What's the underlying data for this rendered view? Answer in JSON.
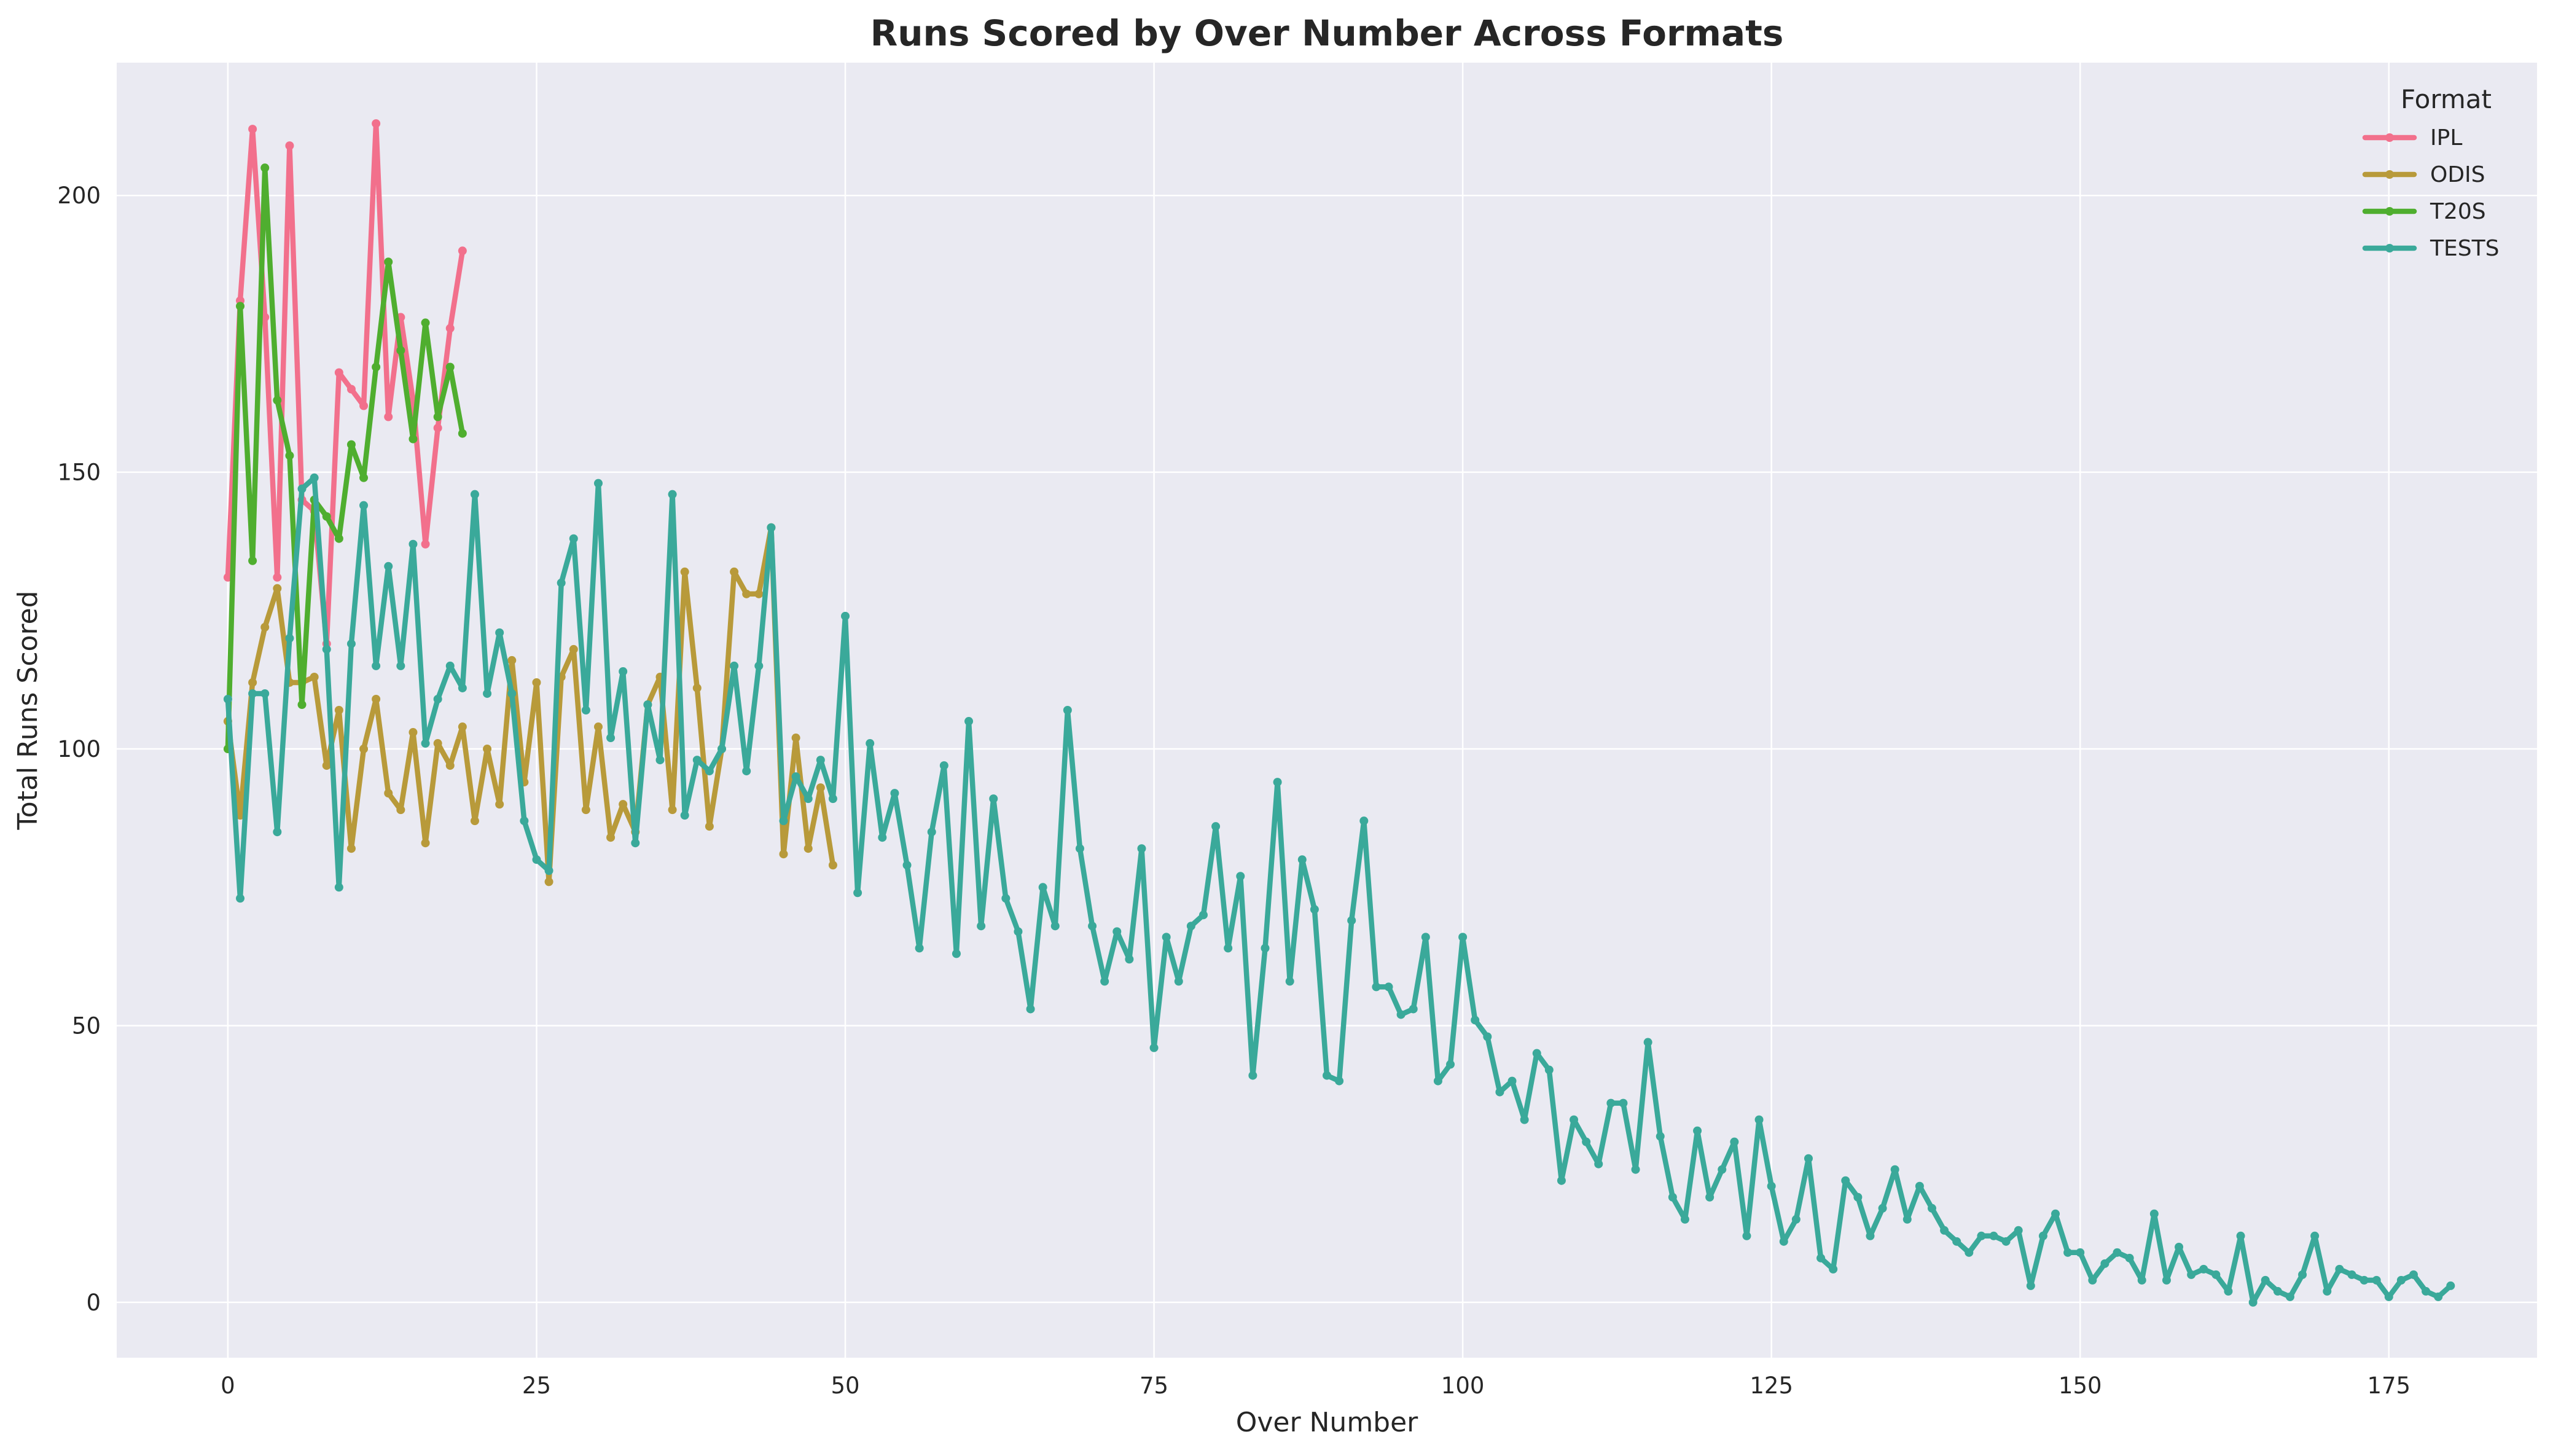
{
  "chart_data": {
    "type": "line",
    "title": "Runs Scored by Over Number Across Formats",
    "xlabel": "Over Number",
    "ylabel": "Total Runs Scored",
    "xlim": [
      -9,
      187
    ],
    "ylim": [
      -10,
      224
    ],
    "xticks": [
      0,
      25,
      50,
      75,
      100,
      125,
      150,
      175
    ],
    "yticks": [
      0,
      50,
      100,
      150,
      200
    ],
    "grid": true,
    "background": "#eaeaf2",
    "legend": {
      "title": "Format",
      "placement": "top-right"
    },
    "series": [
      {
        "name": "IPL",
        "color": "#f2708c",
        "x": [
          0,
          1,
          2,
          3,
          4,
          5,
          6,
          7,
          8,
          9,
          10,
          11,
          12,
          13,
          14,
          15,
          16,
          17,
          18,
          19
        ],
        "values": [
          131,
          181,
          212,
          178,
          131,
          209,
          145,
          143,
          119,
          168,
          165,
          162,
          213,
          160,
          178,
          163,
          137,
          158,
          176,
          190
        ]
      },
      {
        "name": "ODIS",
        "color": "#b89a3a",
        "x": [
          0,
          1,
          2,
          3,
          4,
          5,
          6,
          7,
          8,
          9,
          10,
          11,
          12,
          13,
          14,
          15,
          16,
          17,
          18,
          19,
          20,
          21,
          22,
          23,
          24,
          25,
          26,
          27,
          28,
          29,
          30,
          31,
          32,
          33,
          34,
          35,
          36,
          37,
          38,
          39,
          40,
          41,
          42,
          43,
          44,
          45,
          46,
          47,
          48,
          49
        ],
        "values": [
          105,
          88,
          112,
          122,
          129,
          112,
          112,
          113,
          97,
          107,
          82,
          100,
          109,
          92,
          89,
          103,
          83,
          101,
          97,
          104,
          87,
          100,
          90,
          116,
          94,
          112,
          76,
          113,
          118,
          89,
          104,
          84,
          90,
          85,
          108,
          113,
          89,
          132,
          111,
          86,
          100,
          132,
          128,
          128,
          140,
          81,
          102,
          82,
          93,
          79
        ]
      },
      {
        "name": "T20S",
        "color": "#4fae2f",
        "x": [
          0,
          1,
          2,
          3,
          4,
          5,
          6,
          7,
          8,
          9,
          10,
          11,
          12,
          13,
          14,
          15,
          16,
          17,
          18,
          19
        ],
        "values": [
          100,
          180,
          134,
          205,
          163,
          153,
          108,
          145,
          142,
          138,
          155,
          149,
          169,
          188,
          172,
          156,
          177,
          160,
          169,
          157
        ]
      },
      {
        "name": "TESTS",
        "color": "#3aa99a",
        "x": [
          0,
          1,
          2,
          3,
          4,
          5,
          6,
          7,
          8,
          9,
          10,
          11,
          12,
          13,
          14,
          15,
          16,
          17,
          18,
          19,
          20,
          21,
          22,
          23,
          24,
          25,
          26,
          27,
          28,
          29,
          30,
          31,
          32,
          33,
          34,
          35,
          36,
          37,
          38,
          39,
          40,
          41,
          42,
          43,
          44,
          45,
          46,
          47,
          48,
          49,
          50,
          51,
          52,
          53,
          54,
          55,
          56,
          57,
          58,
          59,
          60,
          61,
          62,
          63,
          64,
          65,
          66,
          67,
          68,
          69,
          70,
          71,
          72,
          73,
          74,
          75,
          76,
          77,
          78,
          79,
          80,
          81,
          82,
          83,
          84,
          85,
          86,
          87,
          88,
          89,
          90,
          91,
          92,
          93,
          94,
          95,
          96,
          97,
          98,
          99,
          100,
          101,
          102,
          103,
          104,
          105,
          106,
          107,
          108,
          109,
          110,
          111,
          112,
          113,
          114,
          115,
          116,
          117,
          118,
          119,
          120,
          121,
          122,
          123,
          124,
          125,
          126,
          127,
          128,
          129,
          130,
          131,
          132,
          133,
          134,
          135,
          136,
          137,
          138,
          139,
          140,
          141,
          142,
          143,
          144,
          145,
          146,
          147,
          148,
          149,
          150,
          151,
          152,
          153,
          154,
          155,
          156,
          157,
          158,
          159,
          160,
          161,
          162,
          163,
          164,
          165,
          166,
          167,
          168,
          169,
          170,
          171,
          172,
          173,
          174,
          175,
          176,
          177,
          178,
          179,
          180
        ],
        "values": [
          109,
          73,
          110,
          110,
          85,
          120,
          147,
          149,
          118,
          75,
          119,
          144,
          115,
          133,
          115,
          137,
          101,
          109,
          115,
          111,
          146,
          110,
          121,
          110,
          87,
          80,
          78,
          130,
          138,
          107,
          148,
          102,
          114,
          83,
          108,
          98,
          146,
          88,
          98,
          96,
          100,
          115,
          96,
          115,
          140,
          87,
          95,
          91,
          98,
          91,
          124,
          74,
          101,
          84,
          92,
          79,
          64,
          85,
          97,
          63,
          105,
          68,
          91,
          73,
          67,
          53,
          75,
          68,
          107,
          82,
          68,
          58,
          67,
          62,
          82,
          46,
          66,
          58,
          68,
          70,
          86,
          64,
          77,
          41,
          64,
          94,
          58,
          80,
          71,
          41,
          40,
          69,
          87,
          57,
          57,
          52,
          53,
          66,
          40,
          43,
          66,
          51,
          48,
          38,
          40,
          33,
          45,
          42,
          22,
          33,
          29,
          25,
          36,
          36,
          24,
          47,
          30,
          19,
          15,
          31,
          19,
          24,
          29,
          12,
          33,
          21,
          11,
          15,
          26,
          8,
          6,
          22,
          19,
          12,
          17,
          24,
          15,
          21,
          17,
          13,
          11,
          9,
          12,
          12,
          11,
          13,
          3,
          12,
          16,
          9,
          9,
          4,
          7,
          9,
          8,
          4,
          16,
          4,
          10,
          5,
          6,
          5,
          2,
          12,
          0,
          4,
          2,
          1,
          5,
          12,
          2,
          6,
          5,
          4,
          4,
          1,
          4,
          5,
          2,
          1,
          3
        ]
      }
    ]
  }
}
